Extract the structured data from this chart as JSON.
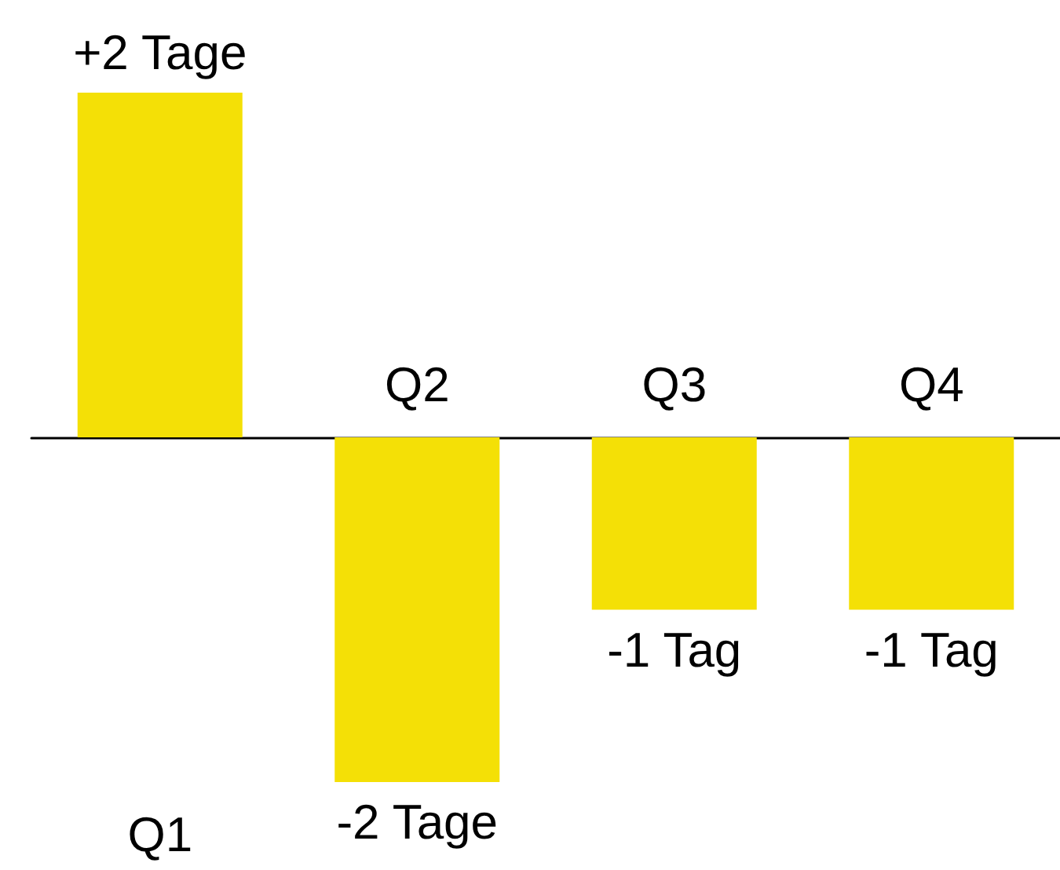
{
  "chart_data": {
    "type": "bar",
    "categories": [
      "Q1",
      "Q2",
      "Q3",
      "Q4"
    ],
    "values": [
      2,
      -2,
      -1,
      -1
    ],
    "value_labels": [
      "+2 Tage",
      "-2 Tage",
      "-1 Tag",
      "-1 Tag"
    ],
    "color": "#f4e006",
    "grid": false
  }
}
